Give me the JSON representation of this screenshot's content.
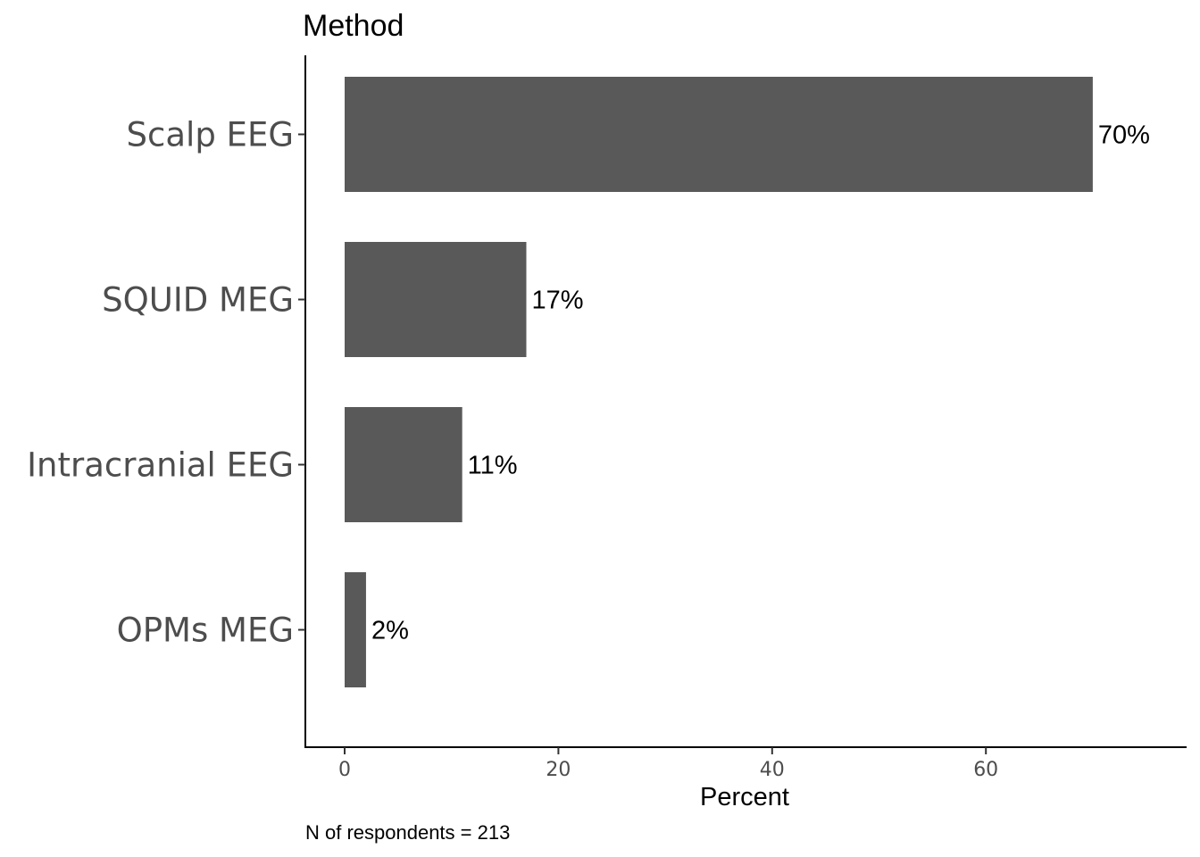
{
  "chart_data": {
    "type": "bar",
    "orientation": "horizontal",
    "title": "Method",
    "categories": [
      "Scalp EEG",
      "SQUID MEG",
      "Intracranial EEG",
      "OPMs MEG"
    ],
    "values": [
      70,
      17,
      11,
      2
    ],
    "data_labels": [
      "70%",
      "17%",
      "11%",
      "2%"
    ],
    "xlabel": "Percent",
    "ylabel": "",
    "xlim": [
      -3.7,
      78.8
    ],
    "xticks": [
      0,
      20,
      40,
      60
    ],
    "xtick_labels": [
      "0",
      "20",
      "40",
      "60"
    ],
    "caption": "N of respondents = 213",
    "bar_color": "#595959",
    "grid": false,
    "legend": "none"
  }
}
